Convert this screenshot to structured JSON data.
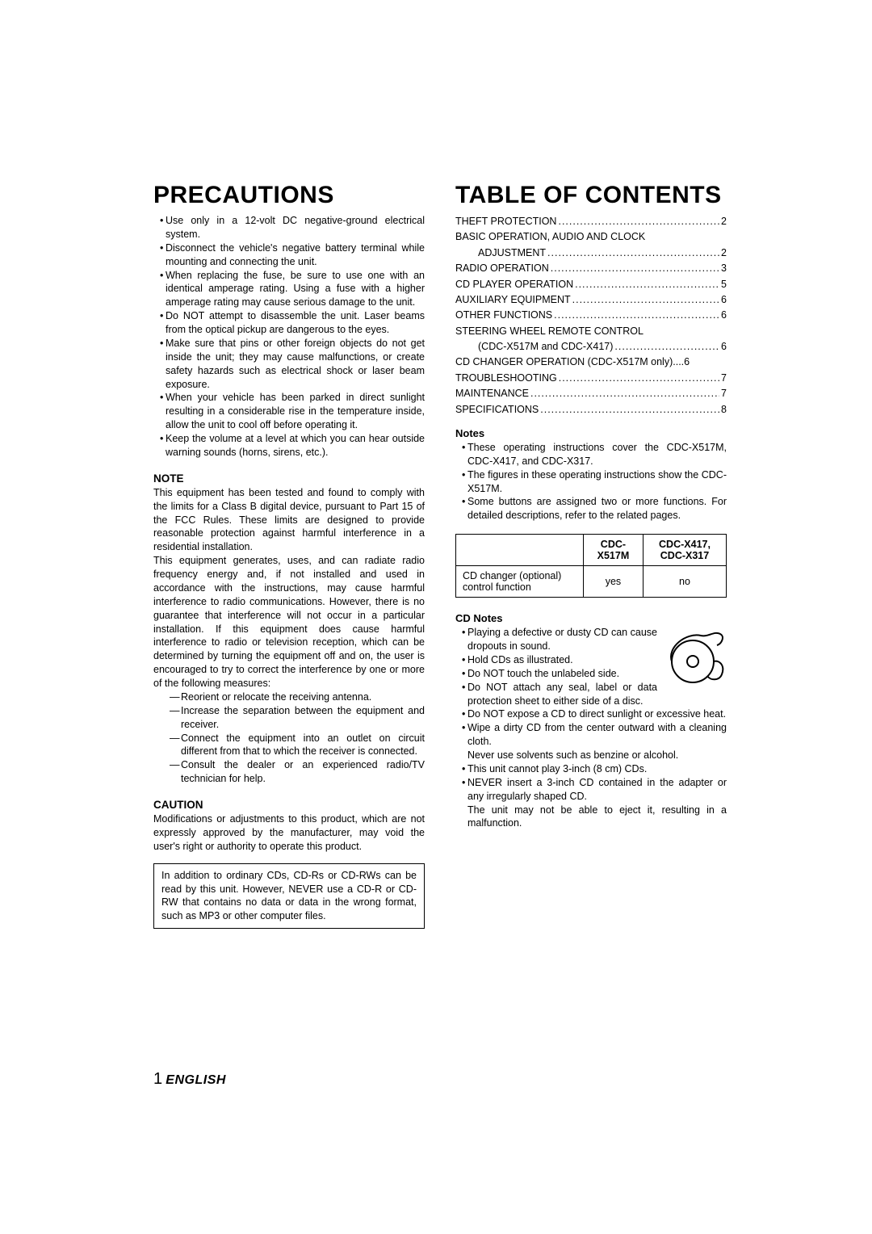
{
  "left": {
    "title": "PRECAUTIONS",
    "precautions": [
      "Use only in a 12-volt DC negative-ground electrical system.",
      "Disconnect the vehicle's negative battery terminal while mounting and connecting the unit.",
      "When replacing the fuse, be sure to use one with an identical amperage rating. Using a fuse with a higher amperage rating may cause serious damage to the unit.",
      "Do NOT attempt to disassemble the unit. Laser beams from the optical pickup are dangerous to the eyes.",
      "Make sure that pins or other foreign objects do not get inside the unit; they may cause malfunctions, or create safety hazards such as electrical shock or laser beam exposure.",
      "When your vehicle has been parked in direct sunlight resulting in a considerable rise in the temperature inside, allow the unit to cool off before operating it.",
      "Keep the volume at a level at which you can hear outside warning sounds (horns, sirens, etc.)."
    ],
    "note_head": "NOTE",
    "note_p1": "This equipment has been tested and found to comply with the limits for a Class B digital device, pursuant to Part 15 of the FCC Rules. These limits are designed to provide reasonable protection against harmful interference in a residential installation.",
    "note_p2": "This equipment generates, uses, and can radiate radio frequency energy and, if not installed and used in accordance with the instructions, may cause harmful interference to radio communications. However, there is no guarantee that interference will not occur in a particular installation. If this equipment does cause harmful interference to radio or television reception, which can be determined by turning the equipment off and on, the user is encouraged to try to correct the interference by one or more of the following measures:",
    "measures": [
      "Reorient or relocate the receiving antenna.",
      "Increase the separation between the equipment and receiver.",
      "Connect the equipment into an outlet on circuit different from that to which the receiver is connected.",
      "Consult the dealer or an experienced radio/TV technician for help."
    ],
    "caution_head": "CAUTION",
    "caution_text": "Modifications or adjustments to this product, which are not expressly approved by the manufacturer, may void the user's right or authority to operate this product.",
    "box_text": "In addition to ordinary CDs, CD-Rs or CD-RWs can be read by this unit. However, NEVER use a CD-R or CD-RW that contains no data or data in the wrong format, such as MP3 or other computer files."
  },
  "right": {
    "title": "TABLE OF CONTENTS",
    "toc": [
      {
        "label": "THEFT PROTECTION",
        "page": "2",
        "indent": false
      },
      {
        "label": "BASIC OPERATION, AUDIO AND CLOCK",
        "page": "",
        "indent": false,
        "nodots": true
      },
      {
        "label": "ADJUSTMENT",
        "page": "2",
        "indent": true
      },
      {
        "label": "RADIO OPERATION",
        "page": "3",
        "indent": false
      },
      {
        "label": "CD PLAYER OPERATION",
        "page": "5",
        "indent": false
      },
      {
        "label": "AUXILIARY EQUIPMENT",
        "page": "6",
        "indent": false
      },
      {
        "label": "OTHER FUNCTIONS",
        "page": "6",
        "indent": false
      },
      {
        "label": "STEERING WHEEL REMOTE CONTROL",
        "page": "",
        "indent": false,
        "nodots": true
      },
      {
        "label": "(CDC-X517M and CDC-X417)",
        "page": "6",
        "indent": true
      },
      {
        "label": "CD CHANGER OPERATION (CDC-X517M only)",
        "page": "6",
        "indent": false,
        "shortdots": true
      },
      {
        "label": "TROUBLESHOOTING",
        "page": "7",
        "indent": false
      },
      {
        "label": "MAINTENANCE",
        "page": "7",
        "indent": false
      },
      {
        "label": "SPECIFICATIONS",
        "page": "8",
        "indent": false
      }
    ],
    "notes_head": "Notes",
    "notes": [
      "These operating instructions cover the CDC-X517M, CDC-X417, and CDC-X317.",
      "The figures in these operating instructions show the CDC-X517M.",
      "Some buttons are assigned two or more functions. For detailed descriptions, refer to the related pages."
    ],
    "table": {
      "col1": "CDC-X517M",
      "col2": "CDC-X417, CDC-X317",
      "row_label": "CD changer (optional) control function",
      "v1": "yes",
      "v2": "no"
    },
    "cd_notes_head": "CD Notes",
    "cd_notes": [
      "Playing a defective or dusty CD can cause dropouts in sound.",
      "Hold CDs as illustrated.",
      "Do NOT touch the unlabeled side.",
      "Do NOT attach any seal, label or data protection sheet to either side of a disc.",
      "Do NOT expose a CD to direct sunlight or excessive heat.",
      "Wipe a dirty CD from the center outward with a cleaning cloth."
    ],
    "cd_cont1": "Never use solvents such as benzine or alcohol.",
    "cd_notes2": [
      "This unit cannot play 3-inch (8 cm) CDs.",
      "NEVER insert a 3-inch CD contained in the adapter or any irregularly shaped CD."
    ],
    "cd_cont2": "The unit may not be able to eject it, resulting in a malfunction."
  },
  "footer": {
    "num": "1",
    "lang": "ENGLISH"
  }
}
